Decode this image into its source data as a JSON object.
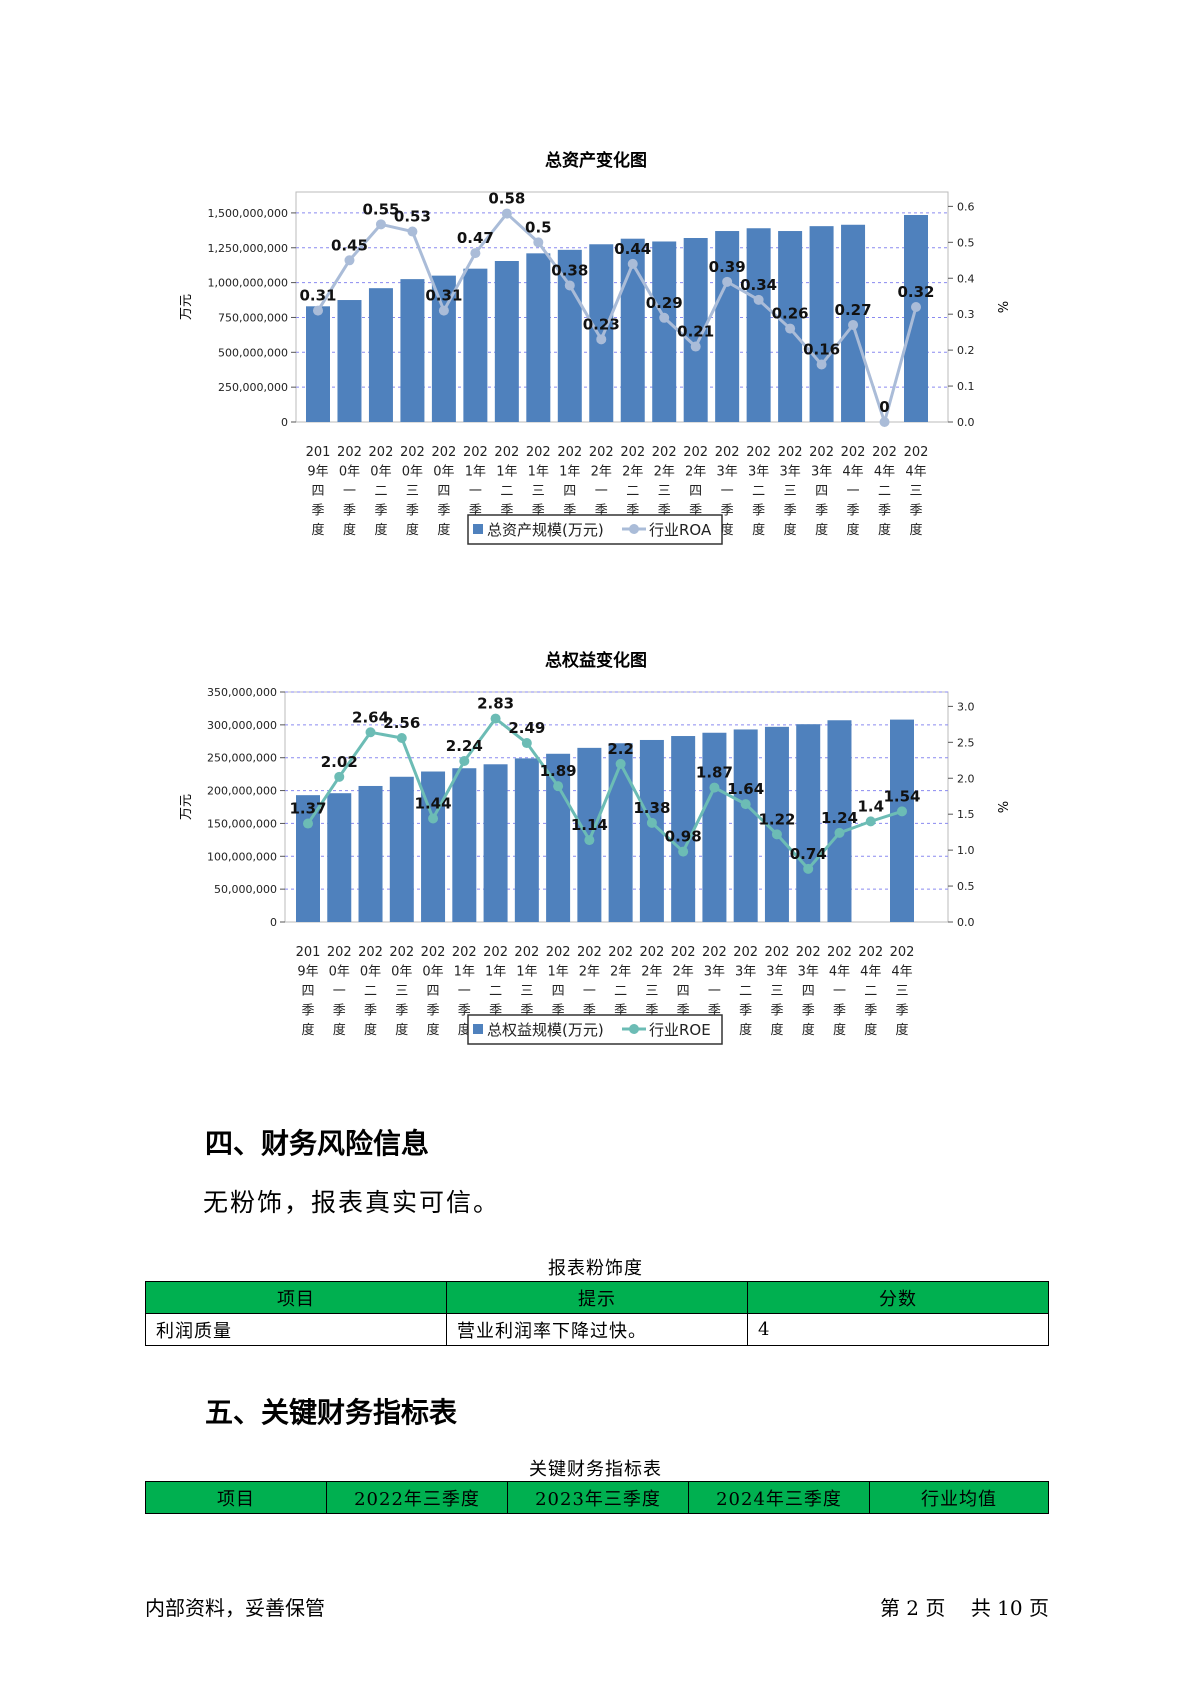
{
  "charts": [
    {
      "title": "总资产变化图",
      "left_axis_label": "万元",
      "right_axis_label": "%",
      "left_ticks": [
        "0",
        "250,000,000",
        "500,000,000",
        "750,000,000",
        "1,000,000,000",
        "1,250,000,000",
        "1,500,000,000"
      ],
      "right_ticks": [
        "0.0",
        "0.1",
        "0.2",
        "0.3",
        "0.4",
        "0.5",
        "0.6"
      ],
      "legend": [
        "总资产规模(万元)",
        "行业ROA"
      ],
      "line_color": "#aabcd8"
    },
    {
      "title": "总权益变化图",
      "left_axis_label": "万元",
      "right_axis_label": "%",
      "left_ticks": [
        "0",
        "50,000,000",
        "100,000,000",
        "150,000,000",
        "200,000,000",
        "250,000,000",
        "300,000,000",
        "350,000,000"
      ],
      "right_ticks": [
        "0.0",
        "0.5",
        "1.0",
        "1.5",
        "2.0",
        "2.5",
        "3.0"
      ],
      "legend": [
        "总权益规模(万元)",
        "行业ROE"
      ],
      "line_color": "#6cbcb5"
    }
  ],
  "chart_data": [
    {
      "type": "bar",
      "title": "总资产变化图",
      "categories": [
        [
          "201",
          "9年",
          "四",
          "季",
          "度"
        ],
        [
          "202",
          "0年",
          "一",
          "季",
          "度"
        ],
        [
          "202",
          "0年",
          "二",
          "季",
          "度"
        ],
        [
          "202",
          "0年",
          "三",
          "季",
          "度"
        ],
        [
          "202",
          "0年",
          "四",
          "季",
          "度"
        ],
        [
          "202",
          "1年",
          "一",
          "季",
          "度"
        ],
        [
          "202",
          "1年",
          "二",
          "季",
          "度"
        ],
        [
          "202",
          "1年",
          "三",
          "季",
          "度"
        ],
        [
          "202",
          "1年",
          "四",
          "季",
          "度"
        ],
        [
          "202",
          "2年",
          "一",
          "季",
          "度"
        ],
        [
          "202",
          "2年",
          "二",
          "季",
          "度"
        ],
        [
          "202",
          "2年",
          "三",
          "季",
          "度"
        ],
        [
          "202",
          "2年",
          "四",
          "季",
          "度"
        ],
        [
          "202",
          "3年",
          "一",
          "季",
          "度"
        ],
        [
          "202",
          "3年",
          "二",
          "季",
          "度"
        ],
        [
          "202",
          "3年",
          "三",
          "季",
          "度"
        ],
        [
          "202",
          "3年",
          "四",
          "季",
          "度"
        ],
        [
          "202",
          "4年",
          "一",
          "季",
          "度"
        ],
        [
          "202",
          "4年",
          "二",
          "季",
          "度"
        ],
        [
          "202",
          "4年",
          "三",
          "季",
          "度"
        ]
      ],
      "series": [
        {
          "name": "总资产规模(万元)",
          "axis": "left",
          "values": [
            830000000,
            875000000,
            960000000,
            1025000000,
            1050000000,
            1100000000,
            1155000000,
            1210000000,
            1235000000,
            1275000000,
            1315000000,
            1295000000,
            1320000000,
            1370000000,
            1390000000,
            1370000000,
            1405000000,
            1415000000,
            null,
            1485000000
          ]
        },
        {
          "name": "行业ROA",
          "axis": "right",
          "values": [
            0.31,
            0.45,
            0.55,
            0.53,
            0.31,
            0.47,
            0.58,
            0.5,
            0.38,
            0.23,
            0.44,
            0.29,
            0.21,
            0.39,
            0.34,
            0.26,
            0.16,
            0.27,
            0,
            0.32
          ],
          "labels": [
            "0.31",
            "0.45",
            "0.55",
            "0.53",
            "0.31",
            "0.47",
            "0.58",
            "0.5",
            "0.38",
            "0.23",
            "0.44",
            "0.29",
            "0.21",
            "0.39",
            "0.34",
            "0.26",
            "0.16",
            "0.27",
            "0",
            "0.32"
          ]
        }
      ],
      "ylim_left": [
        0,
        1650000000
      ],
      "ylim_right": [
        0,
        0.64
      ],
      "grid": true,
      "legend_position": "bottom"
    },
    {
      "type": "bar",
      "title": "总权益变化图",
      "categories": [
        [
          "201",
          "9年",
          "四",
          "季",
          "度"
        ],
        [
          "202",
          "0年",
          "一",
          "季",
          "度"
        ],
        [
          "202",
          "0年",
          "二",
          "季",
          "度"
        ],
        [
          "202",
          "0年",
          "三",
          "季",
          "度"
        ],
        [
          "202",
          "0年",
          "四",
          "季",
          "度"
        ],
        [
          "202",
          "1年",
          "一",
          "季",
          "度"
        ],
        [
          "202",
          "1年",
          "二",
          "季",
          "度"
        ],
        [
          "202",
          "1年",
          "三",
          "季",
          "度"
        ],
        [
          "202",
          "1年",
          "四",
          "季",
          "度"
        ],
        [
          "202",
          "2年",
          "一",
          "季",
          "度"
        ],
        [
          "202",
          "2年",
          "二",
          "季",
          "度"
        ],
        [
          "202",
          "2年",
          "三",
          "季",
          "度"
        ],
        [
          "202",
          "2年",
          "四",
          "季",
          "度"
        ],
        [
          "202",
          "3年",
          "一",
          "季",
          "度"
        ],
        [
          "202",
          "3年",
          "二",
          "季",
          "度"
        ],
        [
          "202",
          "3年",
          "三",
          "季",
          "度"
        ],
        [
          "202",
          "3年",
          "四",
          "季",
          "度"
        ],
        [
          "202",
          "4年",
          "一",
          "季",
          "度"
        ],
        [
          "202",
          "4年",
          "二",
          "季",
          "度"
        ],
        [
          "202",
          "4年",
          "三",
          "季",
          "度"
        ]
      ],
      "series": [
        {
          "name": "总权益规模(万元)",
          "axis": "left",
          "values": [
            193000000,
            196000000,
            207000000,
            221000000,
            229000000,
            234000000,
            240000000,
            249000000,
            256000000,
            265000000,
            272000000,
            277000000,
            283000000,
            288000000,
            293000000,
            297000000,
            301000000,
            307000000,
            null,
            308000000
          ]
        },
        {
          "name": "行业ROE",
          "axis": "right",
          "values": [
            1.37,
            2.02,
            2.64,
            2.56,
            1.44,
            2.24,
            2.83,
            2.49,
            1.89,
            1.14,
            2.2,
            1.38,
            0.98,
            1.87,
            1.64,
            1.22,
            0.74,
            1.24,
            1.4,
            1.54
          ],
          "labels": [
            "1.37",
            "2.02",
            "2.64",
            "2.56",
            "1.44",
            "2.24",
            "2.83",
            "2.49",
            "1.89",
            "1.14",
            "2.2",
            "1.38",
            "0.98",
            "1.87",
            "1.64",
            "1.22",
            "0.74",
            "1.24",
            "1.4",
            "1.54"
          ]
        }
      ],
      "ylim_left": [
        0,
        350000000
      ],
      "ylim_right": [
        0,
        3.2
      ],
      "grid": true,
      "legend_position": "bottom"
    }
  ],
  "section4": {
    "heading": "四、财务风险信息",
    "text": "无粉饰，报表真实可信。",
    "table_caption": "报表粉饰度",
    "headers": [
      "项目",
      "提示",
      "分数"
    ],
    "rows": [
      [
        "利润质量",
        "营业利润率下降过快。",
        "4"
      ]
    ]
  },
  "section5": {
    "heading": "五、关键财务指标表",
    "table_caption": "关键财务指标表",
    "headers": [
      "项目",
      "2022年三季度",
      "2023年三季度",
      "2024年三季度",
      "行业均值"
    ]
  },
  "footer": {
    "left": "内部资料，妥善保管",
    "right": "第 2 页    共 10 页"
  },
  "colors": {
    "bar": "#4f81bd",
    "header_green": "#00b050"
  }
}
